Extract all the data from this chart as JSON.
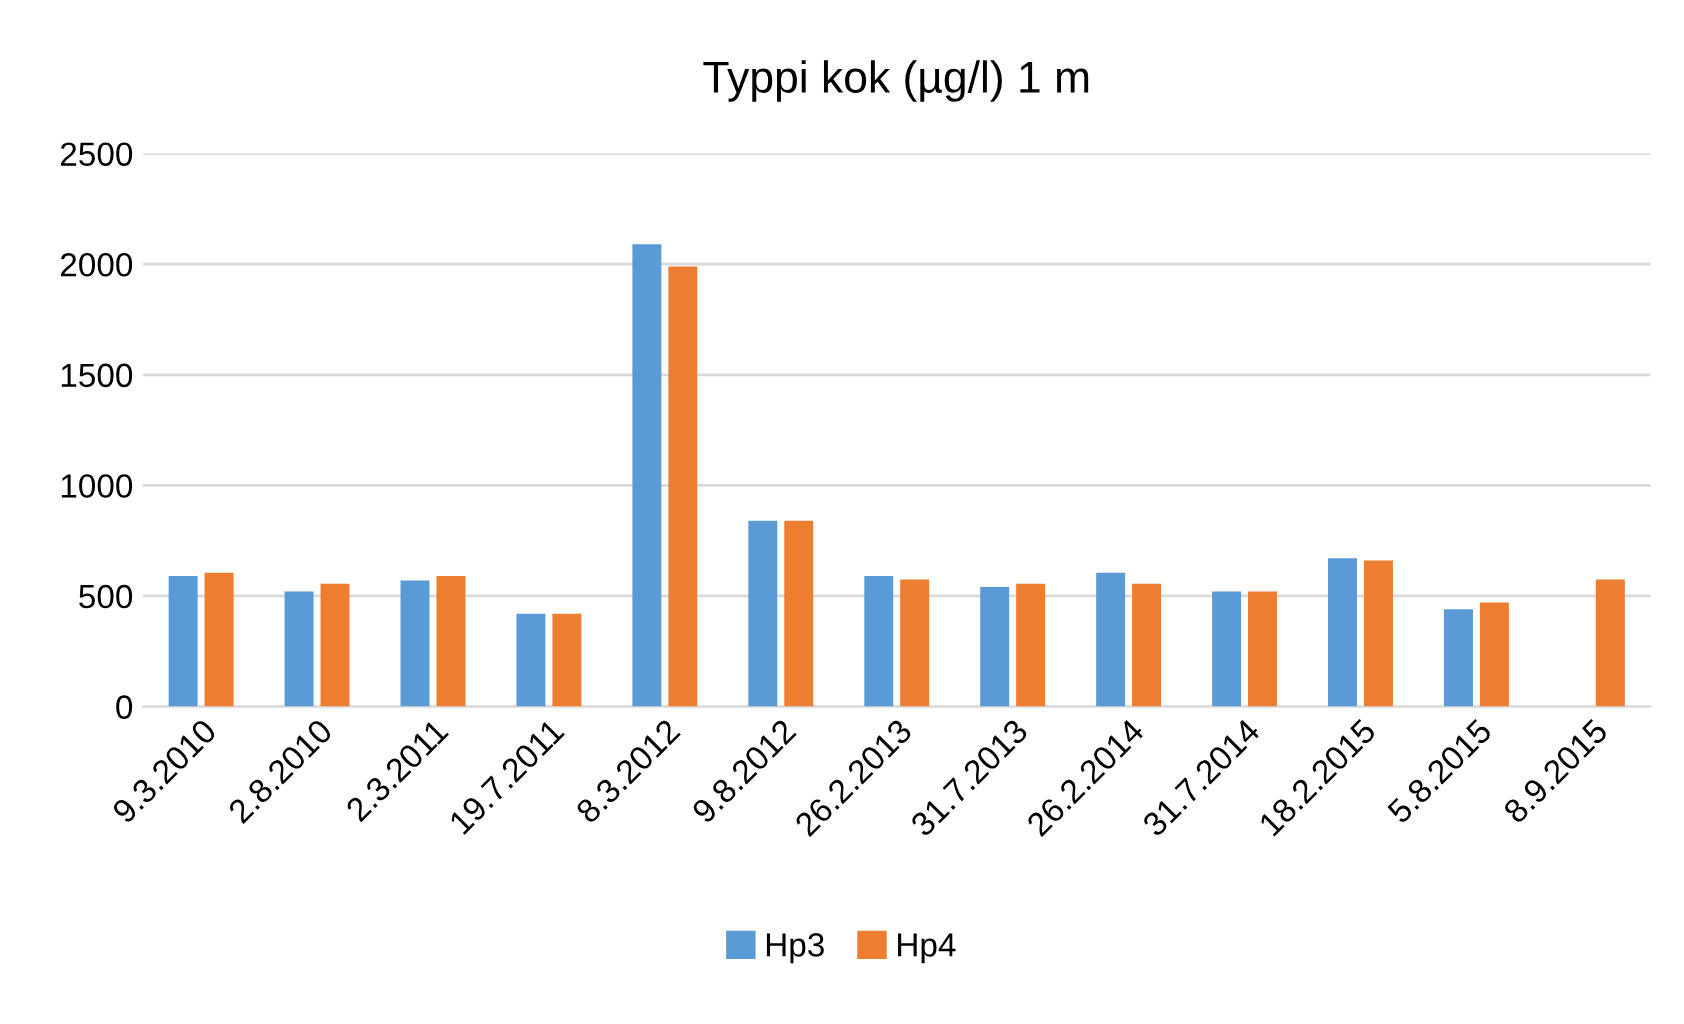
{
  "chart_data": {
    "type": "bar",
    "title": "Typpi kok (µg/l) 1 m",
    "categories": [
      "9.3.2010",
      "2.8.2010",
      "2.3.2011",
      "19.7.2011",
      "8.3.2012",
      "9.8.2012",
      "26.2.2013",
      "31.7.2013",
      "26.2.2014",
      "31.7.2014",
      "18.2.2015",
      "5.8.2015",
      "8.9.2015"
    ],
    "series": [
      {
        "name": "Hp3",
        "color": "#5b9bd5",
        "values": [
          590,
          520,
          570,
          420,
          2090,
          840,
          590,
          540,
          605,
          520,
          670,
          440,
          null
        ]
      },
      {
        "name": "Hp4",
        "color": "#ed7d31",
        "values": [
          605,
          555,
          590,
          420,
          1990,
          840,
          575,
          555,
          555,
          520,
          660,
          470,
          575
        ]
      }
    ],
    "ylim": [
      0,
      2500
    ],
    "yticks": [
      0,
      500,
      1000,
      1500,
      2000,
      2500
    ],
    "grid": "y",
    "legend": "bottom"
  }
}
